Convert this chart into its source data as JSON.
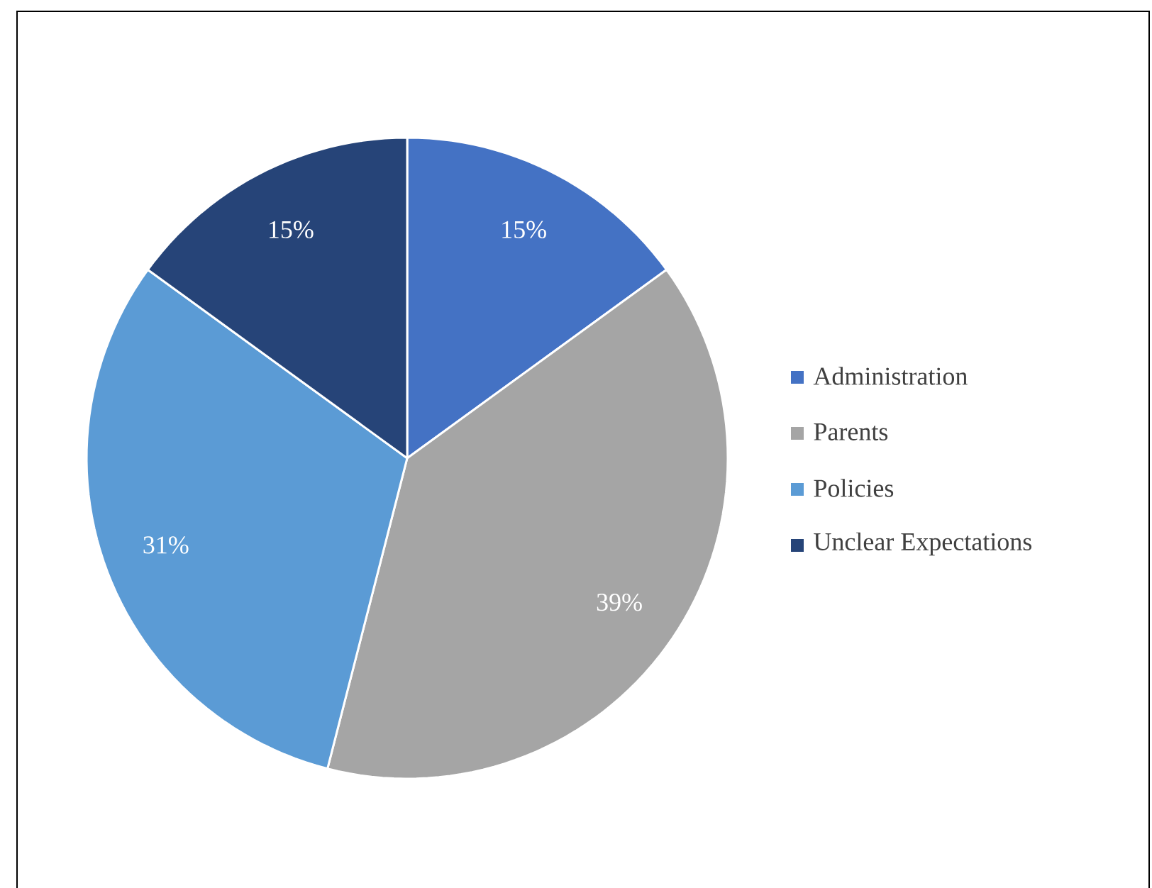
{
  "chart_data": {
    "type": "pie",
    "categories": [
      "Administration",
      "Parents",
      "Policies",
      "Unclear Expectations"
    ],
    "values": [
      15,
      39,
      31,
      15
    ],
    "colors": [
      "#4472c4",
      "#a5a5a5",
      "#5b9bd5",
      "#264478"
    ],
    "value_labels": [
      "15%",
      "39%",
      "31%",
      "15%"
    ],
    "legend": "right"
  }
}
